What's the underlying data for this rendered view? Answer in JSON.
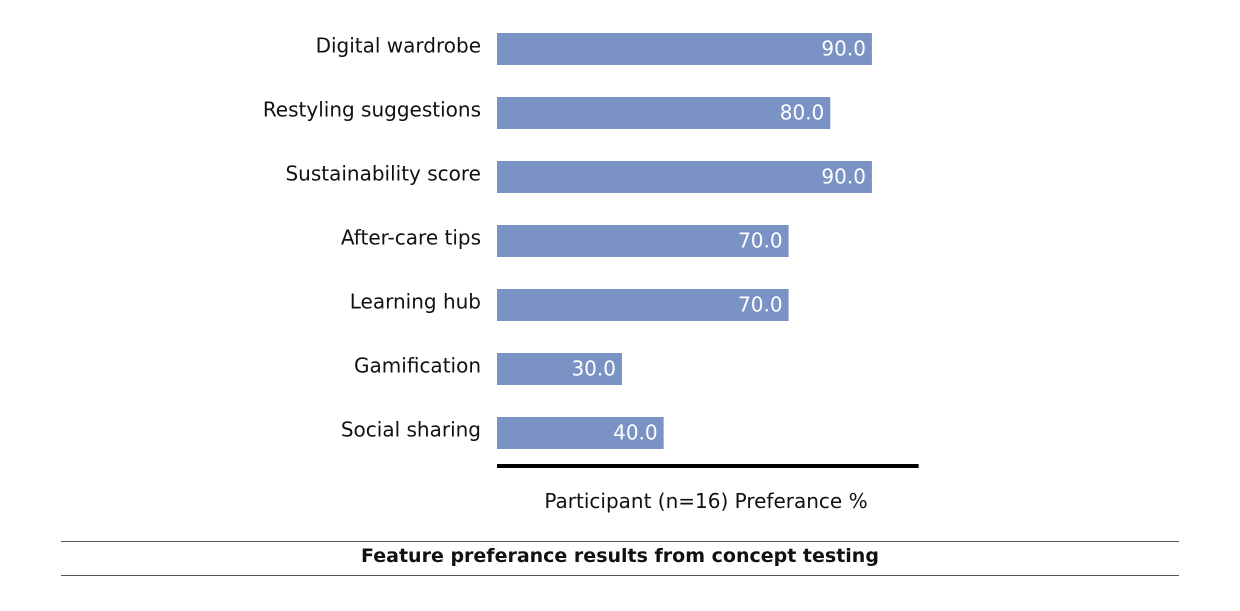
{
  "chart_data": {
    "type": "bar",
    "orientation": "horizontal",
    "categories": [
      "Digital wardrobe",
      "Restyling suggestions",
      "Sustainability score",
      "After-care tips",
      "Learning hub",
      "Gamification",
      "Social sharing"
    ],
    "values": [
      90.0,
      80.0,
      90.0,
      70.0,
      70.0,
      30.0,
      40.0
    ],
    "value_labels": [
      "90.0",
      "80.0",
      "90.0",
      "70.0",
      "70.0",
      "30.0",
      "40.0"
    ],
    "xlabel": "Participant (n=16) Preferance %",
    "xlim": [
      0,
      100
    ],
    "grid": false,
    "legend": "none",
    "bar_color": "#7b93c4",
    "label_color": "#ffffff"
  },
  "caption": "Feature preferance results from concept testing"
}
